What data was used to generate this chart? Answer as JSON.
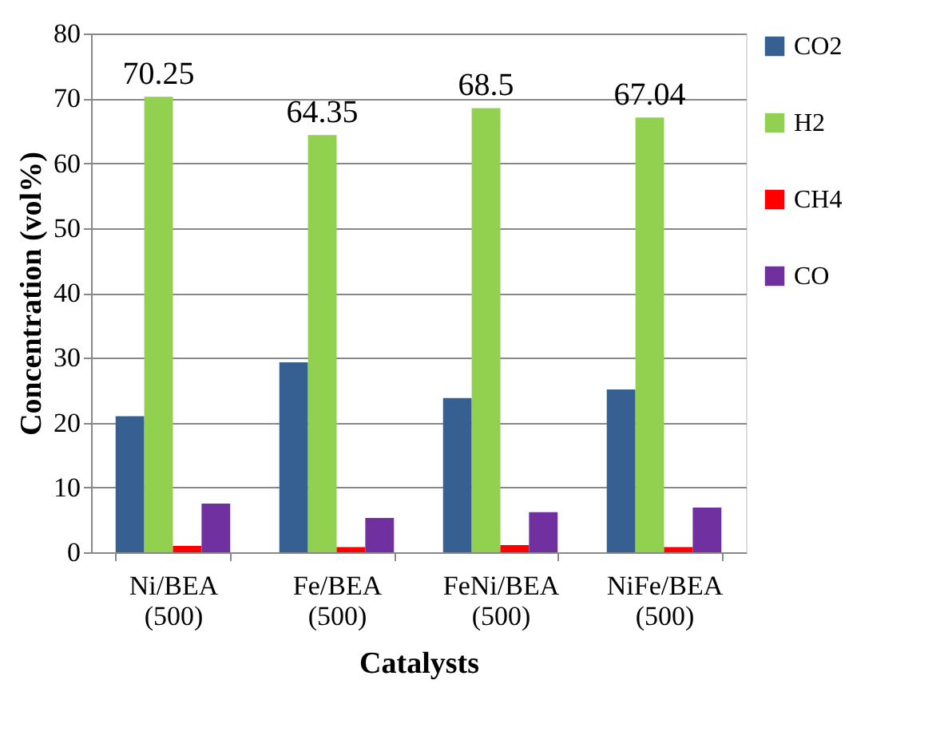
{
  "chart_data": {
    "type": "bar",
    "xlabel": "Catalysts",
    "ylabel": "Concentration (vol%)",
    "categories": [
      "Ni/BEA (500)",
      "Fe/BEA (500)",
      "FeNi/BEA (500)",
      "NiFe/BEA (500)"
    ],
    "series": [
      {
        "name": "CO2",
        "color": "#376092",
        "values": [
          21.0,
          29.3,
          23.8,
          25.1
        ]
      },
      {
        "name": "H2",
        "color": "#92d050",
        "values": [
          70.25,
          64.35,
          68.5,
          67.04
        ],
        "value_labels": [
          "70.25",
          "64.35",
          "68.5",
          "67.04"
        ]
      },
      {
        "name": "CH4",
        "color": "#ff0000",
        "values": [
          1.0,
          0.8,
          1.1,
          0.8
        ]
      },
      {
        "name": "CO",
        "color": "#7030a0",
        "values": [
          7.5,
          5.3,
          6.2,
          6.9
        ]
      }
    ],
    "ylim": [
      0,
      80
    ],
    "yticks": [
      0,
      10,
      20,
      30,
      40,
      50,
      60,
      70,
      80
    ],
    "grid": "y",
    "legend": "right"
  }
}
